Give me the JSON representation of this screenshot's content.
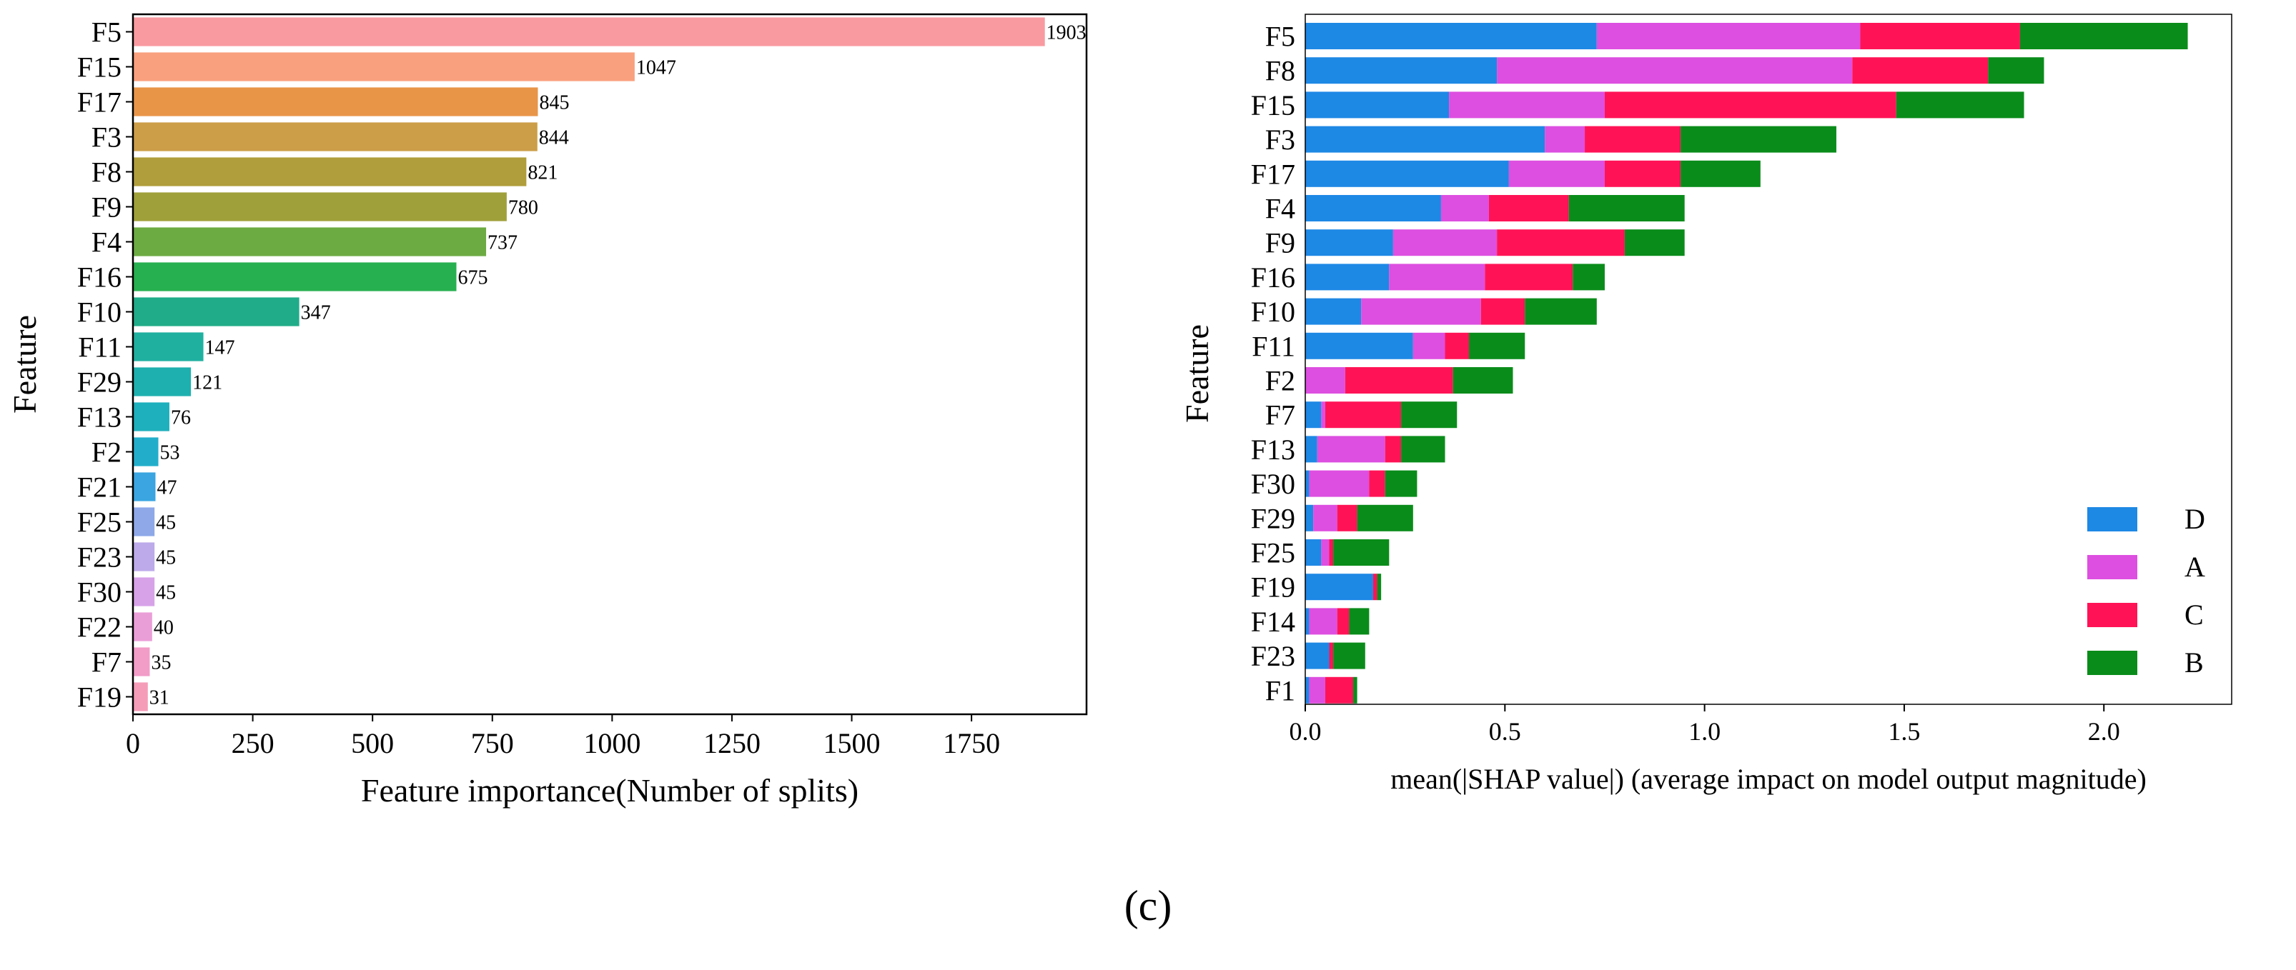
{
  "caption": "(c)",
  "chart_data": [
    {
      "type": "bar",
      "orientation": "horizontal",
      "title": "",
      "xlabel": "Feature importance(Number of splits)",
      "ylabel": "Feature",
      "xlim": [
        0,
        1990
      ],
      "xticks": [
        0,
        250,
        500,
        750,
        1000,
        1250,
        1500,
        1750
      ],
      "xtick_labels": [
        "0",
        "250",
        "500",
        "750",
        "1000",
        "1250",
        "1500",
        "1750"
      ],
      "grid": false,
      "categories": [
        "F5",
        "F15",
        "F17",
        "F3",
        "F8",
        "F9",
        "F4",
        "F16",
        "F10",
        "F11",
        "F29",
        "F13",
        "F2",
        "F21",
        "F25",
        "F23",
        "F30",
        "F22",
        "F7",
        "F19"
      ],
      "values": [
        1903,
        1047,
        845,
        844,
        821,
        780,
        737,
        675,
        347,
        147,
        121,
        76,
        53,
        47,
        45,
        45,
        45,
        40,
        35,
        31
      ],
      "value_labels": [
        "1903",
        "1047",
        "845",
        "844",
        "821",
        "780",
        "737",
        "675",
        "347",
        "147",
        "121",
        "76",
        "53",
        "47",
        "45",
        "45",
        "45",
        "40",
        "35",
        "31"
      ],
      "colors": [
        "#f99aa0",
        "#f9a07e",
        "#e89548",
        "#cc9e48",
        "#b09e3c",
        "#a0a03a",
        "#6cab42",
        "#27b050",
        "#20ac88",
        "#1fb0a0",
        "#1eb0ae",
        "#1eb0bc",
        "#22aecb",
        "#3aa5e0",
        "#8ea8e8",
        "#bcaaea",
        "#d7a2e8",
        "#ea9ed8",
        "#f29cc8",
        "#f59cb8"
      ]
    },
    {
      "type": "bar",
      "orientation": "horizontal",
      "stacked": true,
      "title": "",
      "xlabel": "mean(|SHAP value|) (average impact on model output magnitude)",
      "ylabel": "Feature",
      "xlim": [
        0,
        2.32
      ],
      "xticks": [
        0.0,
        0.5,
        1.0,
        1.5,
        2.0
      ],
      "xtick_labels": [
        "0.0",
        "0.5",
        "1.0",
        "1.5",
        "2.0"
      ],
      "grid": false,
      "legend_position": "bottom-right",
      "categories": [
        "F5",
        "F8",
        "F15",
        "F3",
        "F17",
        "F4",
        "F9",
        "F16",
        "F10",
        "F11",
        "F2",
        "F7",
        "F13",
        "F30",
        "F29",
        "F25",
        "F19",
        "F14",
        "F23",
        "F1"
      ],
      "series": [
        {
          "name": "D",
          "color": "#1e88e5",
          "values": [
            0.73,
            0.48,
            0.36,
            0.6,
            0.51,
            0.34,
            0.22,
            0.21,
            0.14,
            0.27,
            0.0,
            0.04,
            0.03,
            0.01,
            0.02,
            0.04,
            0.17,
            0.01,
            0.06,
            0.01
          ]
        },
        {
          "name": "A",
          "color": "#dd4fe0",
          "values": [
            0.66,
            0.89,
            0.39,
            0.1,
            0.24,
            0.12,
            0.26,
            0.24,
            0.3,
            0.08,
            0.1,
            0.01,
            0.17,
            0.15,
            0.06,
            0.02,
            0.0,
            0.07,
            0.0,
            0.04
          ]
        },
        {
          "name": "C",
          "color": "#ff1356",
          "values": [
            0.4,
            0.34,
            0.73,
            0.24,
            0.19,
            0.2,
            0.32,
            0.22,
            0.11,
            0.06,
            0.27,
            0.19,
            0.04,
            0.04,
            0.05,
            0.01,
            0.01,
            0.03,
            0.01,
            0.07
          ]
        },
        {
          "name": "B",
          "color": "#0a8c1a",
          "values": [
            0.42,
            0.14,
            0.32,
            0.39,
            0.2,
            0.29,
            0.15,
            0.08,
            0.18,
            0.14,
            0.15,
            0.14,
            0.11,
            0.08,
            0.14,
            0.14,
            0.01,
            0.05,
            0.08,
            0.01
          ]
        }
      ]
    }
  ]
}
